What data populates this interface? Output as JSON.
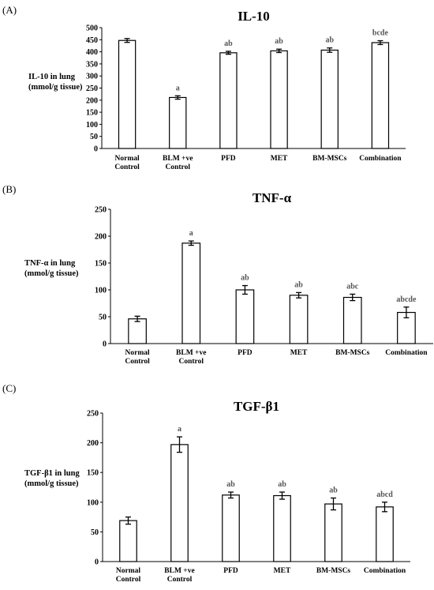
{
  "chart_data": [
    {
      "type": "bar",
      "panel": "(A)",
      "title": "IL-10",
      "ylabel": [
        "IL-10 in lung",
        "(mmol/g tissue)"
      ],
      "categories": [
        [
          "Normal",
          "Control"
        ],
        [
          "BLM +ve",
          "Control"
        ],
        [
          "PFD"
        ],
        [
          "MET"
        ],
        [
          "BM-MSCs"
        ],
        [
          "Combination"
        ]
      ],
      "values": [
        447,
        211,
        396,
        404,
        407,
        438
      ],
      "errors": [
        8,
        7,
        6,
        7,
        9,
        8
      ],
      "significance": [
        "",
        "a",
        "ab",
        "ab",
        "ab",
        "bcde"
      ],
      "ylim": [
        0,
        500
      ],
      "yticks": [
        0,
        50,
        100,
        150,
        200,
        250,
        300,
        350,
        400,
        450,
        500
      ]
    },
    {
      "type": "bar",
      "panel": "(B)",
      "title": "TNF-α",
      "ylabel": [
        "TNF-α in lung",
        "(mmol/g tissue)"
      ],
      "categories": [
        [
          "Normal",
          "Control"
        ],
        [
          "BLM +ve",
          "Control"
        ],
        [
          "PFD"
        ],
        [
          "MET"
        ],
        [
          "BM-MSCs"
        ],
        [
          "Combination"
        ]
      ],
      "values": [
        46,
        187,
        100,
        90,
        86,
        58
      ],
      "errors": [
        5,
        4,
        8,
        5,
        6,
        10
      ],
      "significance": [
        "",
        "a",
        "ab",
        "ab",
        "abc",
        "abcde"
      ],
      "ylim": [
        0,
        250
      ],
      "yticks": [
        0,
        50,
        100,
        150,
        200,
        250
      ]
    },
    {
      "type": "bar",
      "panel": "(C)",
      "title": "TGF-β1",
      "ylabel": [
        "TGF-β1 in lung",
        "(mmol/g tissue)"
      ],
      "categories": [
        [
          "Normal",
          "Control"
        ],
        [
          "BLM +ve",
          "Control"
        ],
        [
          "PFD"
        ],
        [
          "MET"
        ],
        [
          "BM-MSCs"
        ],
        [
          "Combination"
        ]
      ],
      "values": [
        69,
        197,
        112,
        111,
        97,
        92
      ],
      "errors": [
        6,
        13,
        5,
        6,
        10,
        8
      ],
      "significance": [
        "",
        "a",
        "ab",
        "ab",
        "ab",
        "abcd"
      ],
      "ylim": [
        0,
        250
      ],
      "yticks": [
        0,
        50,
        100,
        150,
        200,
        250
      ]
    }
  ]
}
